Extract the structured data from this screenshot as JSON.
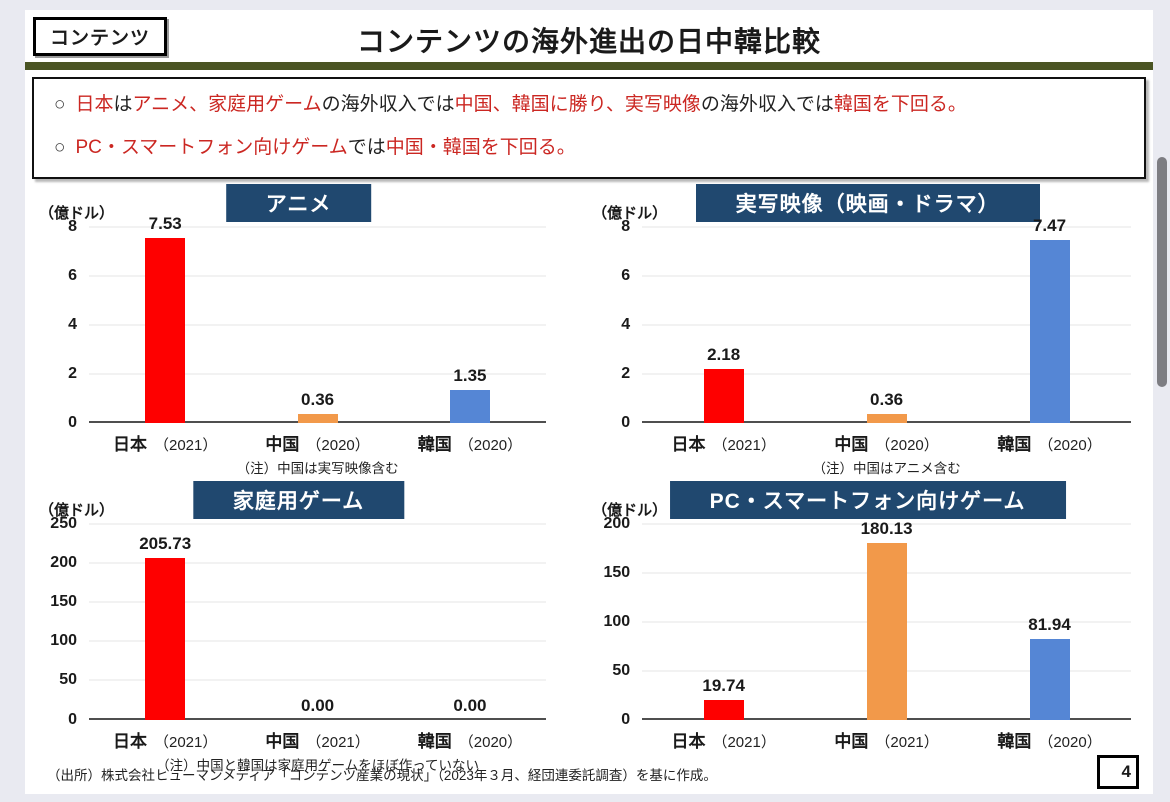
{
  "page": {
    "tag_label": "コンテンツ",
    "title": "コンテンツの海外進出の日中韓比較",
    "source": "（出所）株式会社ヒューマンメディア「コンテンツ産業の現状」（2023年３月、経団連委託調査）を基に作成。",
    "page_number": "4"
  },
  "colors": {
    "navy": "#20486F",
    "olive": "#4A5423",
    "red_text": "#CB2722",
    "bar_red": "#FE0000",
    "bar_orange": "#F2994A",
    "bar_blue": "#5586D5"
  },
  "bullets": [
    {
      "marker": "○",
      "segments": [
        {
          "text": "日本",
          "color": "red"
        },
        {
          "text": "は",
          "color": "black"
        },
        {
          "text": "アニメ、家庭用ゲーム",
          "color": "red"
        },
        {
          "text": "の海外収入では",
          "color": "black"
        },
        {
          "text": "中国、韓国に勝り、実写映像",
          "color": "red"
        },
        {
          "text": "の海外収入では",
          "color": "black"
        },
        {
          "text": "韓国を下回る。",
          "color": "red"
        }
      ]
    },
    {
      "marker": "○",
      "segments": [
        {
          "text": "PC・スマートフォン向けゲーム",
          "color": "red"
        },
        {
          "text": "では",
          "color": "black"
        },
        {
          "text": "中国・韓国を下回る。",
          "color": "red"
        }
      ]
    }
  ],
  "chart_data": [
    {
      "type": "bar",
      "title": "アニメ",
      "unit": "（億ドル）",
      "categories": [
        "日本",
        "中国",
        "韓国"
      ],
      "years": [
        "（2021）",
        "（2020）",
        "（2020）"
      ],
      "values": [
        7.53,
        0.36,
        1.35
      ],
      "value_labels": [
        "7.53",
        "0.36",
        "1.35"
      ],
      "bar_colors": [
        "bar_red",
        "bar_orange",
        "bar_blue"
      ],
      "ticks": [
        0,
        2,
        4,
        6,
        8
      ],
      "ylim": [
        0,
        8
      ],
      "note": "（注）中国は実写映像含む",
      "grid": true,
      "legend": "none"
    },
    {
      "type": "bar",
      "title": "実写映像（映画・ドラマ）",
      "unit": "（億ドル）",
      "categories": [
        "日本",
        "中国",
        "韓国"
      ],
      "years": [
        "（2021）",
        "（2020）",
        "（2020）"
      ],
      "values": [
        2.18,
        0.36,
        7.47
      ],
      "value_labels": [
        "2.18",
        "0.36",
        "7.47"
      ],
      "bar_colors": [
        "bar_red",
        "bar_orange",
        "bar_blue"
      ],
      "ticks": [
        0,
        2,
        4,
        6,
        8
      ],
      "ylim": [
        0,
        8
      ],
      "note": "（注）中国はアニメ含む",
      "grid": true,
      "legend": "none"
    },
    {
      "type": "bar",
      "title": "家庭用ゲーム",
      "unit": "（億ドル）",
      "categories": [
        "日本",
        "中国",
        "韓国"
      ],
      "years": [
        "（2021）",
        "（2021）",
        "（2020）"
      ],
      "values": [
        205.73,
        0,
        0
      ],
      "value_labels": [
        "205.73",
        "0.00",
        "0.00"
      ],
      "bar_colors": [
        "bar_red",
        "bar_orange",
        "bar_blue"
      ],
      "ticks": [
        0,
        50,
        100,
        150,
        200,
        250
      ],
      "ylim": [
        0,
        250
      ],
      "note": "（注）中国と韓国は家庭用ゲームをほぼ作っていない",
      "grid": true,
      "legend": "none"
    },
    {
      "type": "bar",
      "title": "PC・スマートフォン向けゲーム",
      "unit": "（億ドル）",
      "categories": [
        "日本",
        "中国",
        "韓国"
      ],
      "years": [
        "（2021）",
        "（2021）",
        "（2020）"
      ],
      "values": [
        19.74,
        180.13,
        81.94
      ],
      "value_labels": [
        "19.74",
        "180.13",
        "81.94"
      ],
      "bar_colors": [
        "bar_red",
        "bar_orange",
        "bar_blue"
      ],
      "ticks": [
        0,
        50,
        100,
        150,
        200
      ],
      "ylim": [
        0,
        200
      ],
      "note": "",
      "grid": true,
      "legend": "none"
    }
  ]
}
